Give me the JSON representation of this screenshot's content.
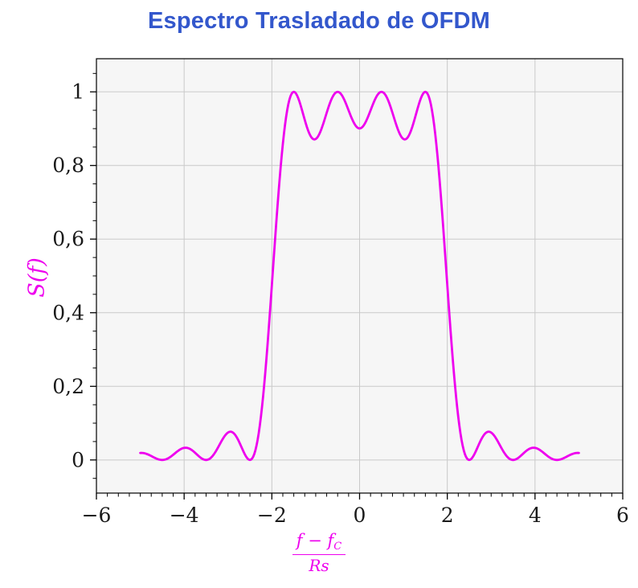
{
  "title": {
    "text": "Espectro Trasladado de OFDM",
    "color": "#3357cc"
  },
  "axis_labels": {
    "y": "S(f)",
    "x": {
      "numerator_main": "f − f",
      "numerator_sub": "C",
      "denominator": "Rs",
      "as_text": "(f − f_C) / Rs"
    }
  },
  "colors": {
    "curve": "#ee00ee",
    "labels": "#ee00ee",
    "title": "#3357cc",
    "plot_bg": "#f6f6f6",
    "grid": "#c9c9c9",
    "frame": "#000000",
    "tick_text": "#1a1a1a"
  },
  "chart_data": {
    "type": "line",
    "title": "Espectro Trasladado de OFDM",
    "xlabel": "(f − f_C) / Rs",
    "ylabel": "S(f)",
    "xlim": [
      -6,
      6
    ],
    "ylim": [
      -0.09,
      1.09
    ],
    "x_ticks": [
      -6,
      -4,
      -2,
      0,
      2,
      4,
      6
    ],
    "x_tick_labels": [
      "−6",
      "−4",
      "−2",
      "0",
      "2",
      "4",
      "6"
    ],
    "y_ticks": [
      0,
      0.2,
      0.4,
      0.6,
      0.8,
      1
    ],
    "y_tick_labels": [
      "0",
      "0,2",
      "0,4",
      "0,6",
      "0,8",
      "1"
    ],
    "x_minor_step": 0.25,
    "y_minor_step": 0.05,
    "grid": true,
    "legend": "none",
    "line_color": "#ee00ee",
    "line_width": 2.8,
    "model": {
      "description": "OFDM power spectrum: S(f) = sum over subcarriers k of sinc^2(f - f_k)",
      "subcarriers": [
        -1.5,
        -0.5,
        0.5,
        1.5
      ],
      "x_start": -5,
      "x_end": 5,
      "x_step": 0.025
    },
    "key_features": {
      "passband": "flat-top with ripple between x = -2 and x = 2",
      "peaks": [
        {
          "x": -1.5,
          "y": 1.0
        },
        {
          "x": -0.5,
          "y": 1.0
        },
        {
          "x": 0.5,
          "y": 1.0
        },
        {
          "x": 1.5,
          "y": 1.0
        }
      ],
      "dips": [
        {
          "x": -1,
          "y": 0.87
        },
        {
          "x": 0,
          "y": 0.9
        },
        {
          "x": 1,
          "y": 0.87
        }
      ],
      "zeros": [
        -4.5,
        -3.5,
        -2.5,
        2.5,
        3.5,
        4.5
      ],
      "sidelobe_peaks": [
        {
          "x": -3,
          "y": 0.075
        },
        {
          "x": 3,
          "y": 0.075
        },
        {
          "x": -4,
          "y": 0.033
        },
        {
          "x": 4,
          "y": 0.033
        }
      ],
      "endpoints": [
        {
          "x": -5,
          "y": 0.019
        },
        {
          "x": 5,
          "y": 0.019
        }
      ]
    }
  }
}
